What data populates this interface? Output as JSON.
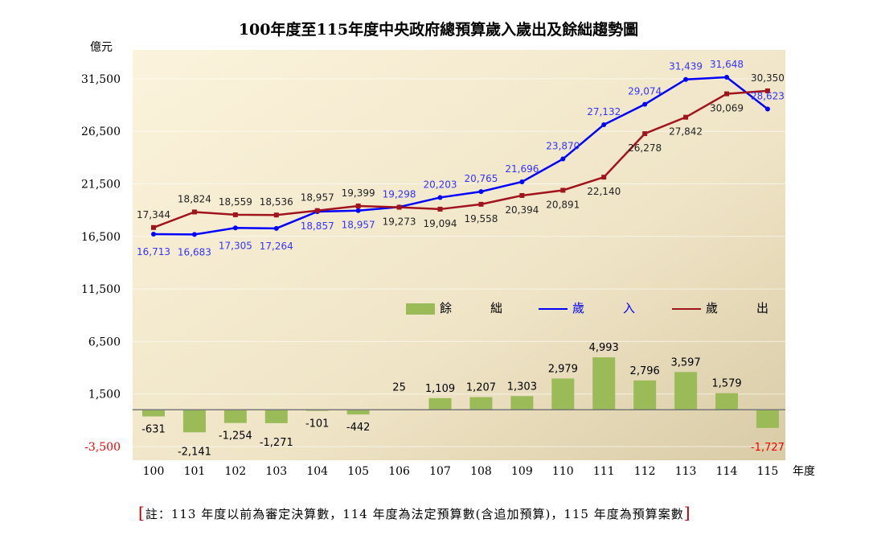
{
  "chart_data": {
    "type": "bar+line",
    "title": "100年度至115年度中央政府總預算歲入歲出及餘絀趨勢圖",
    "ylabel": "億元",
    "xlabel": "年度",
    "categories": [
      "100",
      "101",
      "102",
      "103",
      "104",
      "105",
      "106",
      "107",
      "108",
      "109",
      "110",
      "111",
      "112",
      "113",
      "114",
      "115"
    ],
    "ylim": [
      -3500,
      34000
    ],
    "yticks": [
      "31,500",
      "26,500",
      "21,500",
      "16,500",
      "11,500",
      "6,500",
      "1,500",
      "-3,500"
    ],
    "ytick_values": [
      31500,
      26500,
      21500,
      16500,
      11500,
      6500,
      1500,
      -3500
    ],
    "series": [
      {
        "name": "餘　　絀",
        "type": "bar",
        "color": "#9bbb59",
        "values": [
          -631,
          -2141,
          -1254,
          -1271,
          -101,
          -442,
          25,
          1109,
          1207,
          1303,
          2979,
          4993,
          2796,
          3597,
          1579,
          -1727
        ],
        "labels": [
          "-631",
          "-2,141",
          "-1,254",
          "-1,271",
          "-101",
          "-442",
          "25",
          "1,109",
          "1,207",
          "1,303",
          "2,979",
          "4,993",
          "2,796",
          "3,597",
          "1,579",
          "-1,727"
        ]
      },
      {
        "name": "歲　　入",
        "type": "line",
        "color": "#0000ff",
        "label_color": "#3333ff",
        "values": [
          16713,
          16683,
          17305,
          17264,
          18857,
          18957,
          19298,
          20203,
          20765,
          21696,
          23870,
          27132,
          29074,
          31439,
          31648,
          28623
        ],
        "labels": [
          "16,713",
          "16,683",
          "17,305",
          "17,264",
          "18,857",
          "18,957",
          "19,298",
          "20,203",
          "20,765",
          "21,696",
          "23,870",
          "27,132",
          "29,074",
          "31,439",
          "31,648",
          "28,623"
        ]
      },
      {
        "name": "歲　　出",
        "type": "line",
        "color": "#a0141e",
        "values": [
          17344,
          18824,
          18559,
          18536,
          18957,
          19399,
          19273,
          19094,
          19558,
          20394,
          20891,
          22140,
          26278,
          27842,
          30069,
          30350
        ],
        "labels": [
          "17,344",
          "18,824",
          "18,559",
          "18,536",
          "18,957",
          "19,399",
          "19,273",
          "19,094",
          "19,558",
          "20,394",
          "20,891",
          "22,140",
          "26,278",
          "27,842",
          "30,069",
          "30,350"
        ]
      }
    ],
    "legend": "center-right",
    "grid": true,
    "note": "註：113 年度以前為審定決算數，114 年度為法定預算數(含追加預算)，115 年度為預算案數"
  }
}
